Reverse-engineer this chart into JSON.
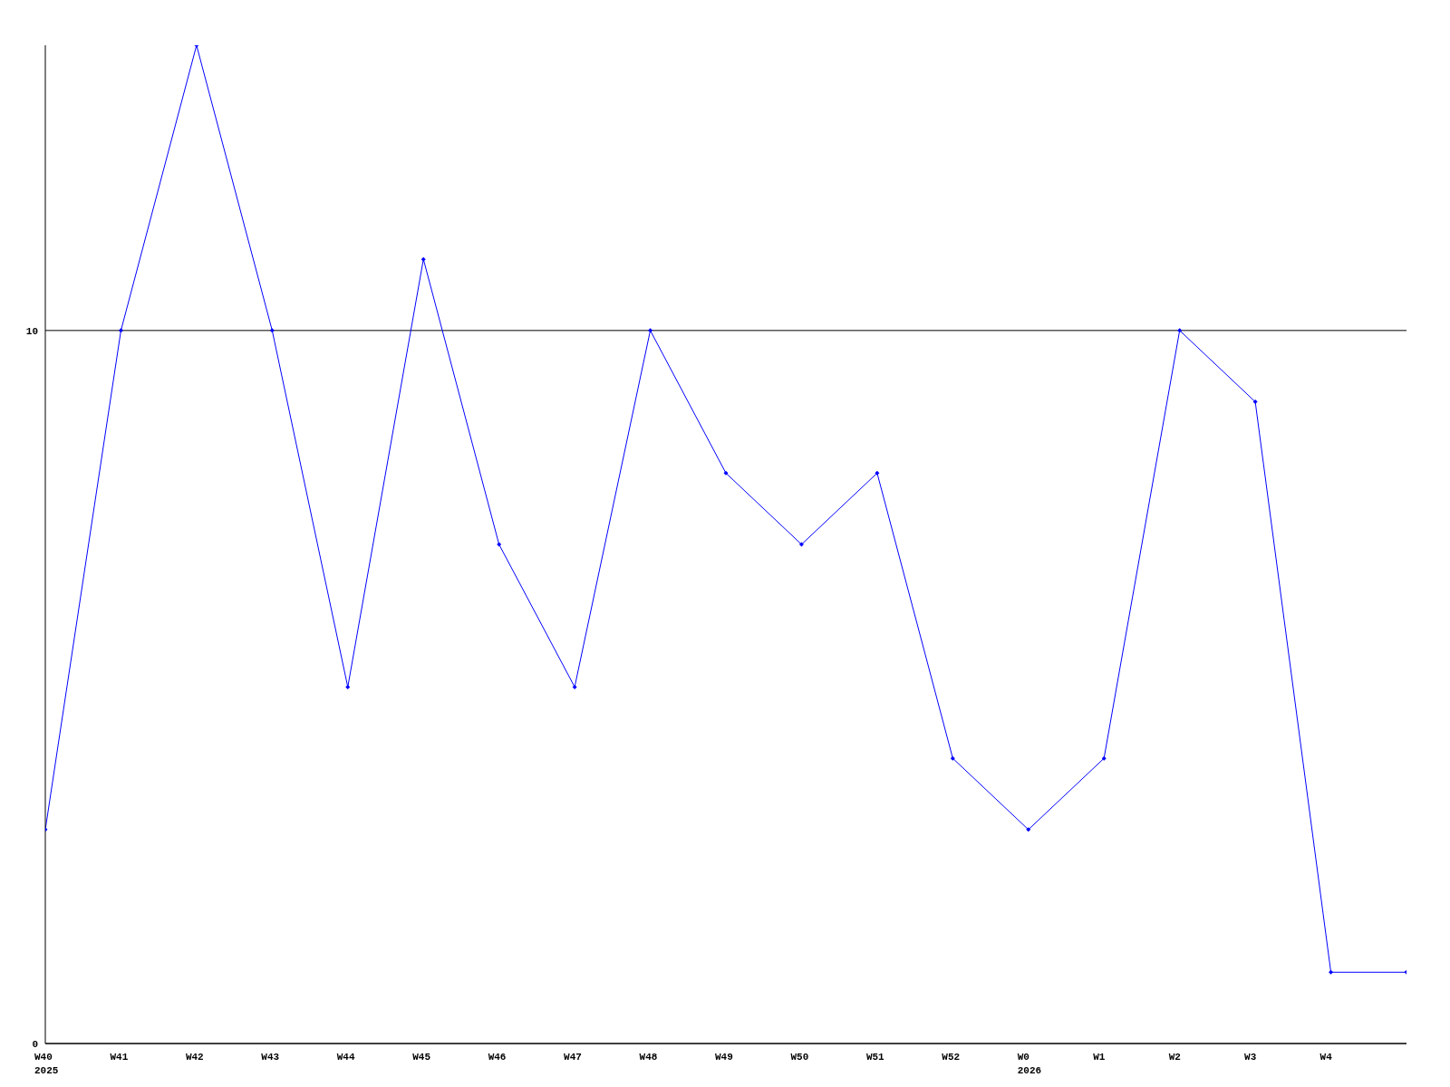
{
  "chart_data": {
    "type": "line",
    "categories": [
      "W40\n2025",
      "W41",
      "W42",
      "W43",
      "W44",
      "W45",
      "W46",
      "W47",
      "W48",
      "W49",
      "W50",
      "W51",
      "W52",
      "W0\n2026",
      "W1",
      "W2",
      "W3",
      "W4",
      null
    ],
    "series": [
      {
        "color": "#0000ff",
        "values": [
          3,
          10,
          14,
          10,
          5,
          11,
          7,
          5,
          10,
          8,
          7,
          8,
          4,
          3,
          4,
          10,
          9,
          1,
          1
        ]
      }
    ],
    "ylim": [
      0,
      14
    ],
    "yticks": [
      0,
      10
    ],
    "grid": "y",
    "marker": "diamond",
    "line_style": "solid"
  }
}
